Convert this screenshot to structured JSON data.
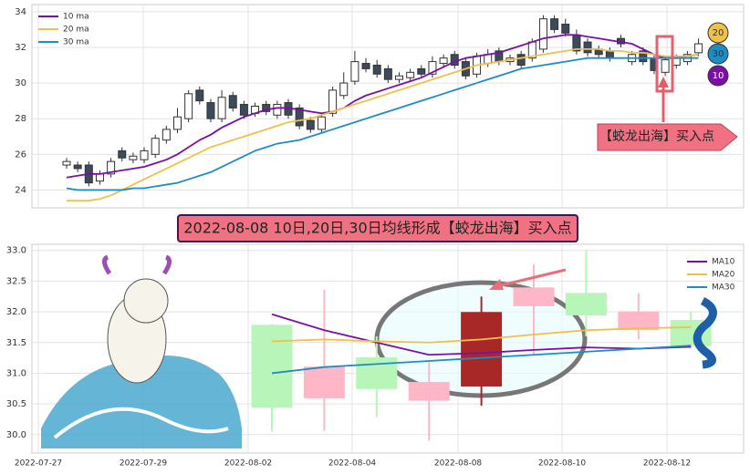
{
  "chart_data": [
    {
      "type": "candlestick",
      "open": [
        25.4,
        25.4,
        25.4,
        24.5,
        24.9,
        26.2,
        25.7,
        25.7,
        26.0,
        26.8,
        27.4,
        28.0,
        29.6,
        28.9,
        28.0,
        29.3,
        28.8,
        28.3,
        28.8,
        28.2,
        28.9,
        28.6,
        27.9,
        27.4,
        28.3,
        29.3,
        30.1,
        31.1,
        31.0,
        30.8,
        30.2,
        30.3,
        30.8,
        30.5,
        31.1,
        31.6,
        31.2,
        30.5,
        31.1,
        31.8,
        31.2,
        31.6,
        31.4,
        31.9,
        33.6,
        33.3,
        32.7,
        32.3,
        31.9,
        31.8,
        32.5,
        31.2,
        31.8,
        31.4,
        30.6,
        31.0,
        31.2,
        31.7
      ],
      "high": [
        25.8,
        25.6,
        25.6,
        25.1,
        25.8,
        26.4,
        26.1,
        26.4,
        27.1,
        27.6,
        28.6,
        29.6,
        29.8,
        29.1,
        29.6,
        29.5,
        29.0,
        28.9,
        29.0,
        29.0,
        29.1,
        28.8,
        28.1,
        28.3,
        29.8,
        30.6,
        31.8,
        31.4,
        31.3,
        31.0,
        30.6,
        30.8,
        31.0,
        31.5,
        31.6,
        31.8,
        31.4,
        31.7,
        31.9,
        32.0,
        31.6,
        31.8,
        32.5,
        33.8,
        33.8,
        33.6,
        33.0,
        32.5,
        32.1,
        32.0,
        32.7,
        31.8,
        32.0,
        31.6,
        31.5,
        31.6,
        31.8,
        32.5
      ],
      "low": [
        25.2,
        25.0,
        24.2,
        24.3,
        24.7,
        25.6,
        25.5,
        25.5,
        25.8,
        26.6,
        27.2,
        27.8,
        28.8,
        27.8,
        27.8,
        28.4,
        28.0,
        28.1,
        28.2,
        28.0,
        28.0,
        27.4,
        27.2,
        27.2,
        28.1,
        29.1,
        29.9,
        30.6,
        30.3,
        30.0,
        30.0,
        30.1,
        30.3,
        30.3,
        30.9,
        30.8,
        30.2,
        30.3,
        30.9,
        31.0,
        31.0,
        30.8,
        31.2,
        31.7,
        32.8,
        32.6,
        31.6,
        31.5,
        31.4,
        31.2,
        32.0,
        31.0,
        31.0,
        30.5,
        30.4,
        30.8,
        31.0,
        31.5
      ],
      "close": [
        25.6,
        25.2,
        24.4,
        24.9,
        25.6,
        25.8,
        25.9,
        26.2,
        26.9,
        27.4,
        28.1,
        29.4,
        29.0,
        28.0,
        29.2,
        28.6,
        28.2,
        28.7,
        28.4,
        28.8,
        28.2,
        27.6,
        27.4,
        28.1,
        29.6,
        30.0,
        31.2,
        30.8,
        30.5,
        30.2,
        30.4,
        30.6,
        30.5,
        31.2,
        31.4,
        31.0,
        30.4,
        31.5,
        31.6,
        31.2,
        31.4,
        31.0,
        32.3,
        33.6,
        33.0,
        32.8,
        31.8,
        31.7,
        31.6,
        31.4,
        32.2,
        31.6,
        31.2,
        30.7,
        31.3,
        31.4,
        31.6,
        32.2
      ],
      "up_color": "#ffffff",
      "down_color": "#3d4a5c",
      "series": [
        {
          "name": "10 ma",
          "color": "#7a0fa8",
          "values": [
            24.7,
            24.8,
            24.9,
            24.9,
            25.0,
            25.1,
            25.2,
            25.3,
            25.5,
            25.7,
            26.0,
            26.4,
            26.8,
            27.1,
            27.5,
            27.8,
            28.1,
            28.3,
            28.5,
            28.6,
            28.6,
            28.5,
            28.4,
            28.3,
            28.4,
            28.6,
            29.0,
            29.3,
            29.5,
            29.7,
            29.9,
            30.1,
            30.3,
            30.6,
            30.9,
            31.2,
            31.4,
            31.5,
            31.6,
            31.7,
            31.9,
            32.1,
            32.3,
            32.5,
            32.6,
            32.7,
            32.7,
            32.6,
            32.5,
            32.4,
            32.3,
            32.2,
            31.9,
            31.6,
            31.4,
            31.4,
            31.5,
            31.6
          ]
        },
        {
          "name": "20 ma",
          "color": "#f0c048",
          "values": [
            23.4,
            23.4,
            23.4,
            23.5,
            23.7,
            24.0,
            24.3,
            24.6,
            24.9,
            25.2,
            25.5,
            25.8,
            26.1,
            26.4,
            26.6,
            26.8,
            27.0,
            27.2,
            27.4,
            27.6,
            27.8,
            27.9,
            28.0,
            28.2,
            28.4,
            28.6,
            28.8,
            29.0,
            29.2,
            29.4,
            29.6,
            29.8,
            30.0,
            30.2,
            30.4,
            30.6,
            30.8,
            31.0,
            31.1,
            31.2,
            31.3,
            31.4,
            31.5,
            31.6,
            31.7,
            31.8,
            31.9,
            31.9,
            31.9,
            31.8,
            31.8,
            31.7,
            31.7,
            31.6,
            31.5,
            31.5,
            31.5,
            31.6
          ]
        },
        {
          "name": "30 ma",
          "color": "#1f8cc4",
          "values": [
            24.1,
            24.0,
            24.0,
            24.0,
            24.0,
            24.0,
            24.1,
            24.1,
            24.2,
            24.3,
            24.4,
            24.6,
            24.8,
            25.0,
            25.3,
            25.6,
            25.9,
            26.2,
            26.4,
            26.6,
            26.7,
            26.8,
            27.0,
            27.2,
            27.4,
            27.6,
            27.8,
            28.0,
            28.2,
            28.4,
            28.6,
            28.8,
            29.0,
            29.2,
            29.4,
            29.6,
            29.8,
            30.0,
            30.2,
            30.4,
            30.6,
            30.8,
            30.9,
            31.0,
            31.1,
            31.2,
            31.3,
            31.4,
            31.4,
            31.4,
            31.4,
            31.4,
            31.4,
            31.4,
            31.4,
            31.4,
            31.4,
            31.4
          ]
        }
      ],
      "ylim": [
        23.0,
        34.4
      ],
      "yticks": [
        24,
        26,
        28,
        30,
        32,
        34
      ],
      "grid": true,
      "legend": "upper left",
      "annotation": "【蛟龙出海】买入点",
      "badges": [
        "20",
        "30",
        "10"
      ]
    },
    {
      "type": "candlestick",
      "title": "2022-08-08 10日,20日,30日均线形成【蛟龙出海】买入点",
      "x_labels": [
        "2022-07-27",
        "2022-07-29",
        "2022-08-02",
        "2022-08-04",
        "2022-08-08",
        "2022-08-10",
        "2022-08-12"
      ],
      "open": [
        30.45,
        31.1,
        30.75,
        30.85,
        30.79,
        32.39,
        31.95,
        32.0,
        31.45
      ],
      "high": [
        31.8,
        32.36,
        31.6,
        31.18,
        32.25,
        32.77,
        33.0,
        32.3,
        32.0
      ],
      "low": [
        30.05,
        30.06,
        30.28,
        29.9,
        30.47,
        31.3,
        31.6,
        31.55,
        31.4
      ],
      "close": [
        31.78,
        30.6,
        31.25,
        30.56,
        31.99,
        32.1,
        32.3,
        31.71,
        31.86
      ],
      "candle_colors": [
        "#b8f5b8",
        "#ffb6c6",
        "#b8f5b8",
        "#ffb6c6",
        "#a82828",
        "#ffb6c6",
        "#b8f5b8",
        "#ffb6c6",
        "#b8f5b8"
      ],
      "series": [
        {
          "name": "MA10",
          "color": "#7a0fa8",
          "values": [
            31.96,
            31.7,
            31.5,
            31.3,
            31.33,
            31.38,
            31.42,
            31.4,
            31.43
          ]
        },
        {
          "name": "MA20",
          "color": "#f0c048",
          "values": [
            31.52,
            31.55,
            31.52,
            31.5,
            31.55,
            31.63,
            31.7,
            31.73,
            31.75
          ]
        },
        {
          "name": "MA30",
          "color": "#1f8cc4",
          "values": [
            31.0,
            31.1,
            31.15,
            31.2,
            31.25,
            31.3,
            31.35,
            31.4,
            31.45
          ]
        }
      ],
      "ylim": [
        29.7,
        33.1
      ],
      "yticks": [
        {
          "value": 30,
          "label": "30.0"
        },
        30.5,
        {
          "value": 31,
          "label": "31.0"
        },
        31.5,
        {
          "value": 32,
          "label": "32.0"
        },
        32.5,
        {
          "value": 33,
          "label": "33.0"
        }
      ],
      "grid": true,
      "legend": "upper right"
    }
  ]
}
